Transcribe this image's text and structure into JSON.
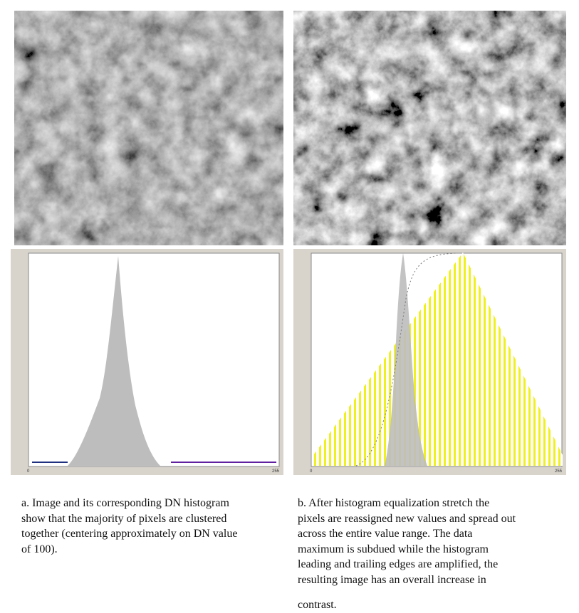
{
  "figure_a": {
    "axis_min": "0",
    "axis_max": "255",
    "caption_lines": [
      "a. Image and its corresponding DN histogram",
      "show that the majority of pixels are clustered",
      "together (centering approximately on DN value",
      "of 100)."
    ]
  },
  "figure_b": {
    "axis_min": "0",
    "axis_max": "255",
    "caption_lines": [
      "b.  After histogram equalization stretch the",
      "pixels are reassigned new values and spread out",
      "across the entire value range. The data",
      "maximum is subdued while the histogram",
      "leading and trailing edges are amplified, the",
      "resulting image has an overall increase in",
      "contrast."
    ]
  }
}
